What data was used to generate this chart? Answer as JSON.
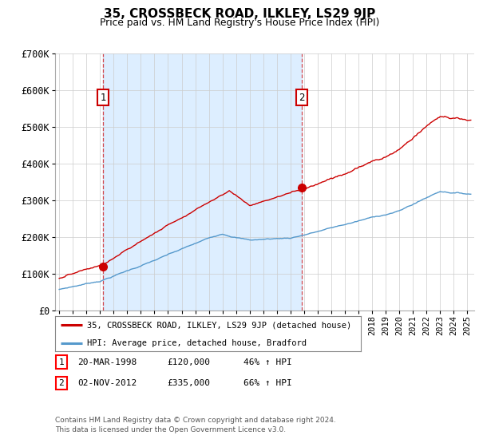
{
  "title": "35, CROSSBECK ROAD, ILKLEY, LS29 9JP",
  "subtitle": "Price paid vs. HM Land Registry's House Price Index (HPI)",
  "ylabel_ticks": [
    "£0",
    "£100K",
    "£200K",
    "£300K",
    "£400K",
    "£500K",
    "£600K",
    "£700K"
  ],
  "ytick_vals": [
    0,
    100000,
    200000,
    300000,
    400000,
    500000,
    600000,
    700000
  ],
  "ylim": [
    0,
    700000
  ],
  "xlim_start": 1994.7,
  "xlim_end": 2025.5,
  "sale1_year": 1998.22,
  "sale1_price": 120000,
  "sale1_label": "1",
  "sale2_year": 2012.84,
  "sale2_price": 335000,
  "sale2_label": "2",
  "property_color": "#cc0000",
  "hpi_color": "#5599cc",
  "shade_color": "#ddeeff",
  "legend_property": "35, CROSSBECK ROAD, ILKLEY, LS29 9JP (detached house)",
  "legend_hpi": "HPI: Average price, detached house, Bradford",
  "table_row1_num": "1",
  "table_row1_date": "20-MAR-1998",
  "table_row1_price": "£120,000",
  "table_row1_hpi": "46% ↑ HPI",
  "table_row2_num": "2",
  "table_row2_date": "02-NOV-2012",
  "table_row2_price": "£335,000",
  "table_row2_hpi": "66% ↑ HPI",
  "footnote1": "Contains HM Land Registry data © Crown copyright and database right 2024.",
  "footnote2": "This data is licensed under the Open Government Licence v3.0.",
  "background_color": "#ffffff",
  "grid_color": "#cccccc"
}
